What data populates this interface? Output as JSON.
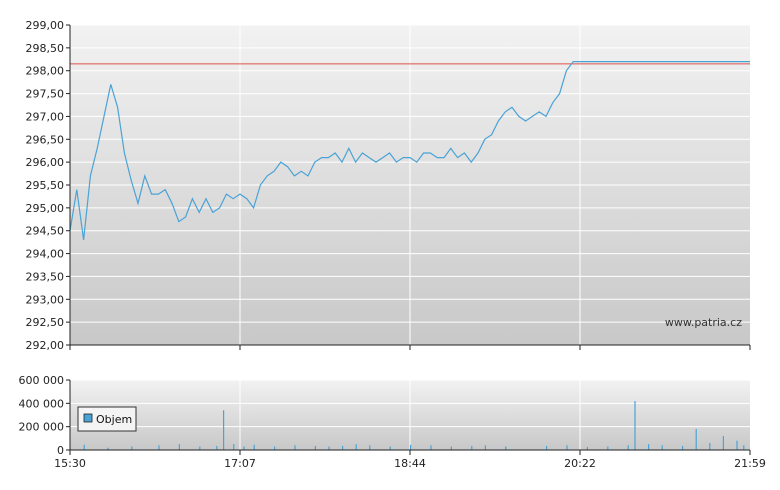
{
  "chart_data": [
    {
      "type": "line",
      "watermark": "www.patria.cz",
      "colors": {
        "line": "#4aa3d6",
        "reference": "#e0504a",
        "grid": "#ffffff",
        "bg_top": "#f2f2f2",
        "bg_bottom": "#c8c8c8"
      },
      "ylim": [
        292,
        299
      ],
      "y_ticks": [
        "292,00",
        "292,50",
        "293,00",
        "293,50",
        "294,00",
        "294,50",
        "295,00",
        "295,50",
        "296,00",
        "296,50",
        "297,00",
        "297,50",
        "298,00",
        "298,50",
        "299,00"
      ],
      "x_ticks": [
        "15:30",
        "17:07",
        "18:44",
        "20:22",
        "21:59"
      ],
      "reference_line": 298.15,
      "series": [
        {
          "x": [
            0.0,
            0.01,
            0.02,
            0.03,
            0.04,
            0.05,
            0.06,
            0.07,
            0.08,
            0.09,
            0.1,
            0.11,
            0.12,
            0.13,
            0.14,
            0.15,
            0.16,
            0.17,
            0.18,
            0.19,
            0.2,
            0.21,
            0.22,
            0.23,
            0.24,
            0.25,
            0.26,
            0.27,
            0.28,
            0.29,
            0.3,
            0.31,
            0.32,
            0.33,
            0.34,
            0.35,
            0.36,
            0.37,
            0.38,
            0.39,
            0.4,
            0.41,
            0.42,
            0.43,
            0.44,
            0.45,
            0.46,
            0.47,
            0.48,
            0.49,
            0.5,
            0.51,
            0.52,
            0.53,
            0.54,
            0.55,
            0.56,
            0.57,
            0.58,
            0.59,
            0.6,
            0.61,
            0.62,
            0.63,
            0.64,
            0.65,
            0.66,
            0.67,
            0.68,
            0.69,
            0.7,
            0.71,
            0.72,
            0.73,
            0.74,
            0.75,
            0.76,
            0.77,
            0.78,
            0.79,
            0.8,
            0.81,
            0.82,
            0.83,
            0.84,
            0.85,
            0.86,
            0.87,
            0.88,
            0.89,
            0.9,
            0.91,
            0.92,
            0.93,
            0.94,
            0.95,
            0.96,
            0.97,
            0.98,
            0.99,
            1.0
          ],
          "values": [
            294.5,
            295.4,
            294.3,
            295.7,
            296.3,
            297.0,
            297.7,
            297.2,
            296.2,
            295.6,
            295.1,
            295.7,
            295.3,
            295.3,
            295.4,
            295.1,
            294.7,
            294.8,
            295.2,
            294.9,
            295.2,
            294.9,
            295.0,
            295.3,
            295.2,
            295.3,
            295.2,
            295.0,
            295.5,
            295.7,
            295.8,
            296.0,
            295.9,
            295.7,
            295.8,
            295.7,
            296.0,
            296.1,
            296.1,
            296.2,
            296.0,
            296.3,
            296.0,
            296.2,
            296.1,
            296.0,
            296.1,
            296.2,
            296.0,
            296.1,
            296.1,
            296.0,
            296.2,
            296.2,
            296.1,
            296.1,
            296.3,
            296.1,
            296.2,
            296.0,
            296.2,
            296.5,
            296.6,
            296.9,
            297.1,
            297.2,
            297.0,
            296.9,
            297.0,
            297.1,
            297.0,
            297.3,
            297.5,
            298.0,
            298.2,
            298.2,
            298.2,
            298.2,
            298.2,
            298.2,
            298.2,
            298.2,
            298.2,
            298.2,
            298.2,
            298.2,
            298.2,
            298.2,
            298.2,
            298.2,
            298.2,
            298.2,
            298.2,
            298.2,
            298.2,
            298.2,
            298.2,
            298.2,
            298.2,
            298.2,
            298.2
          ]
        }
      ]
    },
    {
      "type": "bar",
      "ylim": [
        0,
        600000
      ],
      "y_ticks": [
        "0",
        "200 000",
        "400 000",
        "600 000"
      ],
      "x_ticks": [
        "15:30",
        "17:07",
        "18:44",
        "20:22",
        "21:59"
      ],
      "series": [
        {
          "name": "Objem",
          "x_frac": [
            0.02,
            0.055,
            0.09,
            0.13,
            0.16,
            0.19,
            0.215,
            0.225,
            0.24,
            0.255,
            0.27,
            0.3,
            0.33,
            0.36,
            0.38,
            0.4,
            0.42,
            0.44,
            0.47,
            0.5,
            0.53,
            0.56,
            0.59,
            0.61,
            0.64,
            0.7,
            0.73,
            0.76,
            0.79,
            0.82,
            0.83,
            0.85,
            0.87,
            0.9,
            0.92,
            0.94,
            0.96,
            0.98,
            0.99
          ],
          "values": [
            45000,
            20000,
            30000,
            40000,
            50000,
            30000,
            35000,
            340000,
            50000,
            30000,
            45000,
            30000,
            40000,
            35000,
            30000,
            35000,
            50000,
            40000,
            30000,
            45000,
            40000,
            30000,
            35000,
            40000,
            30000,
            35000,
            40000,
            25000,
            30000,
            40000,
            420000,
            50000,
            40000,
            35000,
            180000,
            60000,
            120000,
            80000,
            40000
          ]
        }
      ]
    }
  ]
}
